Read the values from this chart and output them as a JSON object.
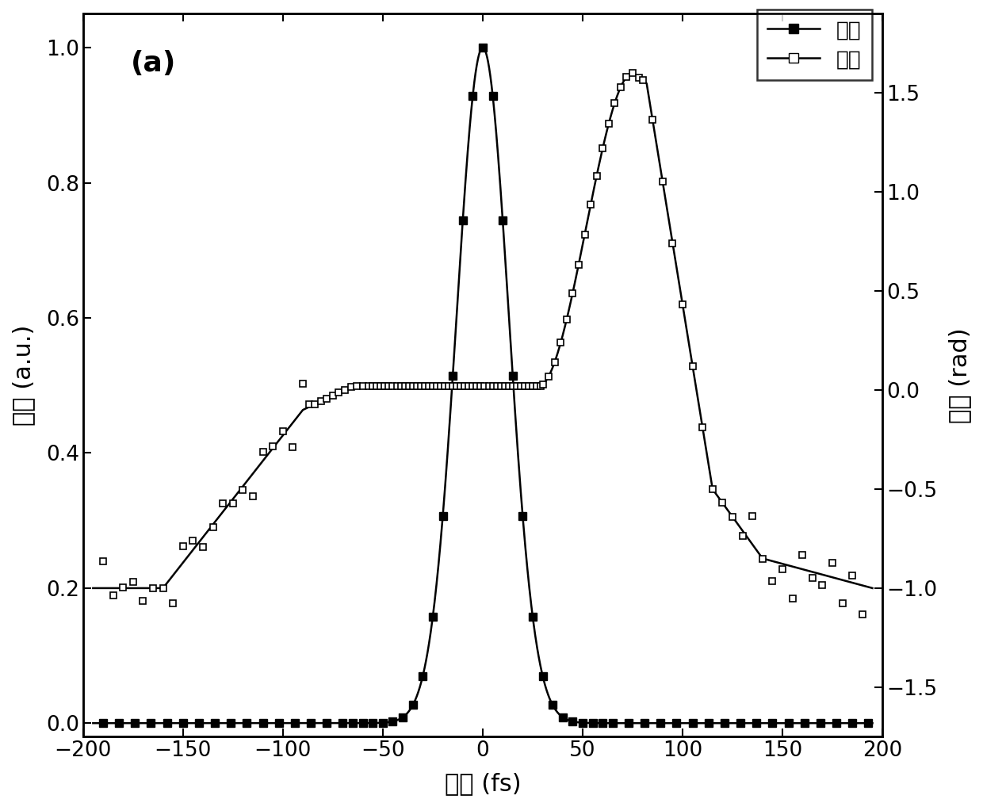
{
  "title": "(a)",
  "xlabel": "延迟 (fs)",
  "ylabel_left": "强度 (a.u.)",
  "ylabel_right": "相位 (rad)",
  "xlim": [
    -200,
    200
  ],
  "ylim_left": [
    -0.02,
    1.05
  ],
  "ylim_right": [
    -1.75,
    1.9
  ],
  "yticks_left": [
    0.0,
    0.2,
    0.4,
    0.6,
    0.8,
    1.0
  ],
  "yticks_right": [
    -1.5,
    -1.0,
    -0.5,
    0.0,
    0.5,
    1.0,
    1.5
  ],
  "xticks": [
    -200,
    -150,
    -100,
    -50,
    0,
    50,
    100,
    150,
    200
  ],
  "legend_intensity": "强度",
  "legend_phase": "相位",
  "background_color": "#ffffff",
  "line_color": "#000000"
}
